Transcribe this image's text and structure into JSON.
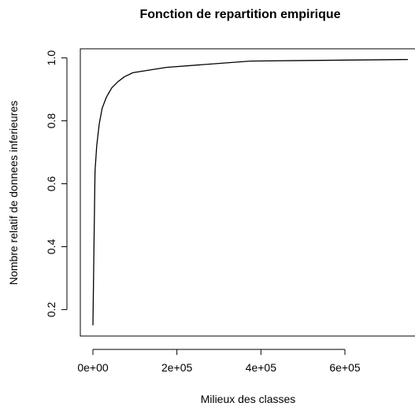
{
  "chart_data": {
    "type": "line",
    "title": "Fonction de repartition empirique",
    "xlabel": "Milieux des classes",
    "ylabel": "Nombre relatif de donnees inferieures",
    "x": [
      0,
      3000,
      5000,
      9000,
      15000,
      22000,
      32000,
      45000,
      60000,
      75000,
      95000,
      175000,
      375000,
      750000
    ],
    "series": [
      {
        "color": "#000000",
        "values": [
          0.15,
          0.45,
          0.64,
          0.72,
          0.79,
          0.84,
          0.875,
          0.905,
          0.925,
          0.94,
          0.953,
          0.97,
          0.99,
          0.995
        ]
      }
    ],
    "xlim": [
      -30000,
      780000
    ],
    "xticks": [
      {
        "value": 0,
        "label": "0e+00"
      },
      {
        "value": 200000,
        "label": "2e+05"
      },
      {
        "value": 400000,
        "label": "4e+05"
      },
      {
        "value": 600000,
        "label": "6e+05"
      }
    ],
    "ylim": [
      0.116,
      1.029
    ],
    "yticks": [
      0.2,
      0.4,
      0.6,
      0.8,
      {
        "value": 1,
        "label": "1.0"
      }
    ]
  }
}
